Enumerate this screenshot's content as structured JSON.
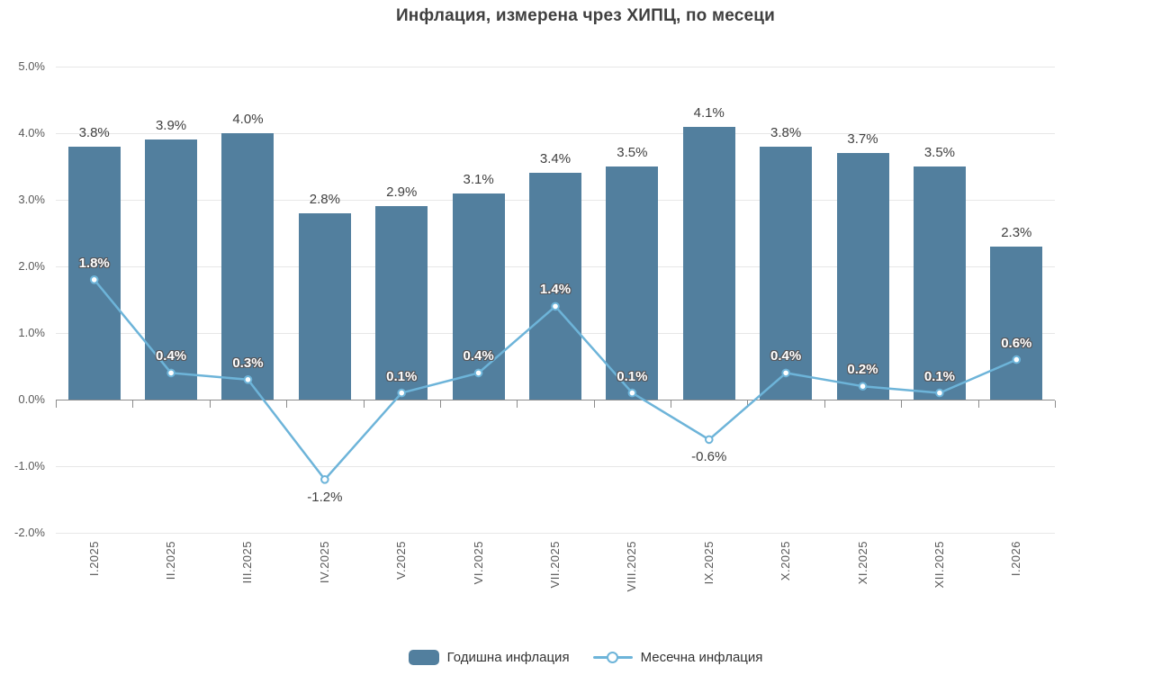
{
  "title": "Инфлация, измерена чрез ХИПЦ, по месеци",
  "legend": {
    "items": [
      {
        "label": "Годишна инфлация",
        "series_type": "bar"
      },
      {
        "label": "Месечна инфлация",
        "series_type": "line"
      }
    ]
  },
  "colors": {
    "bar": "#527f9e",
    "line": "#6db4d9",
    "grid": "#e7e7e7",
    "axis": "#8c8c8c",
    "value_label": "#404040",
    "tick_label": "#595959",
    "label_outline": "#55565a"
  },
  "chart_data": {
    "type": "bar",
    "title": "Инфлация, измерена чрез ХИПЦ, по месеци",
    "categories": [
      "I.2025",
      "II.2025",
      "III.2025",
      "IV.2025",
      "V.2025",
      "VI.2025",
      "VII.2025",
      "VIII.2025",
      "IX.2025",
      "X.2025",
      "XI.2025",
      "XII.2025",
      "I.2026"
    ],
    "series": [
      {
        "name": "Годишна инфлация",
        "type": "bar",
        "values": [
          3.8,
          3.9,
          4.0,
          2.8,
          2.9,
          3.1,
          3.4,
          3.5,
          4.1,
          3.8,
          3.7,
          3.5,
          2.3
        ]
      },
      {
        "name": "Месечна инфлация",
        "type": "line",
        "values": [
          1.8,
          0.4,
          0.3,
          -1.2,
          0.1,
          0.4,
          1.4,
          0.1,
          -0.6,
          0.4,
          0.2,
          0.1,
          0.6
        ]
      }
    ],
    "xlabel": "",
    "ylabel": "",
    "ylim": [
      -2,
      5
    ],
    "ytick_labels": [
      "5.0%",
      "4.0%",
      "3.0%",
      "2.0%",
      "1.0%",
      "0.0%",
      "-1.0%",
      "-2.0%"
    ],
    "ytick_values": [
      5,
      4,
      3,
      2,
      1,
      0,
      -1,
      -2
    ],
    "grid": true,
    "legend_position": "bottom",
    "data_label_format": "{value}%"
  }
}
